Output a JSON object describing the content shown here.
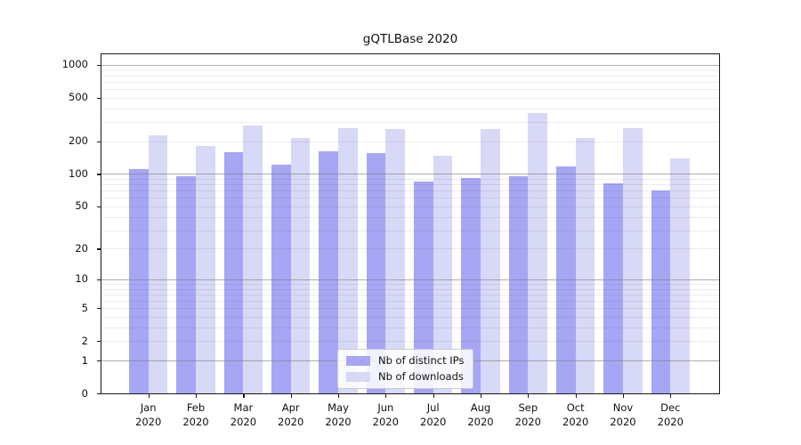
{
  "title": "gQTLBase 2020",
  "colors": {
    "ips_bar": "#a6a6f5",
    "downloads_bar": "#d8d8f7",
    "grid_major": "rgba(130,130,130,0.65)",
    "grid_minor": "rgba(0,0,0,0.07)",
    "spine": "#1a1a1a"
  },
  "legend": {
    "items": [
      {
        "label": "Nb of distinct IPs",
        "series": "ips_bar"
      },
      {
        "label": "Nb of downloads",
        "series": "downloads_bar"
      }
    ]
  },
  "axes": {
    "y_tick_labels": [
      "0",
      "1",
      "2",
      "5",
      "10",
      "20",
      "50",
      "100",
      "200",
      "500",
      "1000"
    ],
    "y_tick_values": [
      0,
      1,
      2,
      5,
      10,
      20,
      50,
      100,
      200,
      500,
      1000
    ],
    "y_major_gridlines": [
      1,
      10,
      100,
      1000
    ],
    "y_minor_gridlines": [
      2,
      3,
      4,
      5,
      6,
      7,
      8,
      9,
      20,
      30,
      40,
      50,
      60,
      70,
      80,
      90,
      200,
      300,
      400,
      500,
      600,
      700,
      800,
      900
    ]
  },
  "chart_data": {
    "type": "bar",
    "title": "gQTLBase 2020",
    "categories": [
      "Jan 2020",
      "Feb 2020",
      "Mar 2020",
      "Apr 2020",
      "May 2020",
      "Jun 2020",
      "Jul 2020",
      "Aug 2020",
      "Sep 2020",
      "Oct 2020",
      "Nov 2020",
      "Dec 2020"
    ],
    "series": [
      {
        "name": "Nb of distinct IPs",
        "color": "#a6a6f5",
        "values": [
          110,
          96,
          160,
          123,
          162,
          155,
          85,
          91,
          96,
          117,
          82,
          71
        ]
      },
      {
        "name": "Nb of downloads",
        "color": "#d8d8f7",
        "values": [
          225,
          182,
          278,
          216,
          265,
          260,
          148,
          259,
          365,
          216,
          262,
          139
        ]
      }
    ],
    "xlabel": "",
    "ylabel": "",
    "yscale": "log1p",
    "ylim": [
      0,
      1250
    ],
    "yticks": [
      0,
      1,
      2,
      5,
      10,
      20,
      50,
      100,
      200,
      500,
      1000
    ],
    "grid": true,
    "grid_over_bars": true,
    "legend_position": "lower center"
  }
}
